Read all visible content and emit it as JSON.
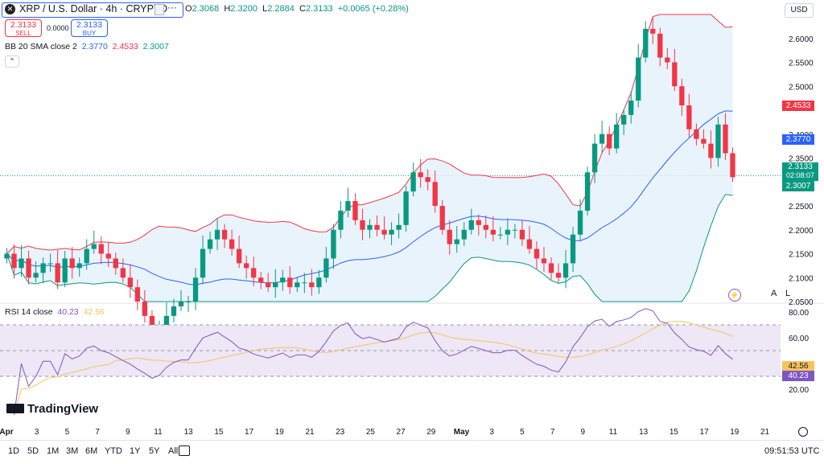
{
  "header": {
    "symbol": "XRP / U.S. Dollar · 4h · CRYPTO",
    "more_icon": "···",
    "ohlc": {
      "o_label": "O",
      "o": "2.3068",
      "h_label": "H",
      "h": "2.3200",
      "l_label": "L",
      "l": "2.2884",
      "c_label": "C",
      "c": "2.3133",
      "change": "+0.0065 (+0.28%)"
    },
    "sell_price": "2.3133",
    "sell_label": "SELL",
    "spread": "0.0000",
    "buy_price": "2.3133",
    "buy_label": "BUY",
    "currency": "USD"
  },
  "indicators": {
    "bb_label": "BB 20 SMA close 2",
    "bb_basis": "2.3770",
    "bb_upper": "2.4533",
    "bb_lower": "2.3007",
    "rsi_label": "RSI 14 close",
    "rsi_value": "40.23",
    "rsi_ma": "42.56"
  },
  "price_tags": {
    "upper": "2.4533",
    "basis": "2.3770",
    "last": "2.3133",
    "countdown": "02:08:07",
    "lower": "2.3007",
    "rsi_ma": "42.56",
    "rsi": "40.23"
  },
  "colors": {
    "up": "#089981",
    "down": "#f23645",
    "bb_upper": "#f23645",
    "bb_basis": "#2962ff",
    "bb_lower": "#089981",
    "bb_fill": "#e3f0fb",
    "rsi": "#7e57c2",
    "rsi_ma": "#f7c35c",
    "rsi_band": "#ede7f6"
  },
  "chart_data": {
    "type": "candlestick",
    "symbol": "XRP / U.S. Dollar",
    "interval": "4h",
    "price_axis": {
      "ticks": [
        2.05,
        2.1,
        2.15,
        2.2,
        2.25,
        2.3,
        2.35,
        2.4,
        2.45,
        2.5,
        2.55,
        2.6
      ],
      "labels": [
        "2.0500",
        "2.1000",
        "2.1500",
        "2.2000",
        "2.2500",
        "",
        "2.3500",
        "2.4000",
        "",
        "2.5000",
        "2.5500",
        "2.6000"
      ],
      "range": [
        2.05,
        2.65
      ]
    },
    "rsi_axis": {
      "ticks": [
        20,
        40,
        60,
        80
      ],
      "labels": [
        "20.00",
        "",
        "60.00",
        "80.00"
      ],
      "range": [
        10,
        85
      ],
      "bands": [
        30,
        70
      ]
    },
    "date_labels": [
      "Apr",
      "3",
      "5",
      "7",
      "9",
      "11",
      "13",
      "15",
      "17",
      "19",
      "21",
      "23",
      "25",
      "27",
      "29",
      "May",
      "3",
      "5",
      "7",
      "9",
      "11",
      "13",
      "15",
      "17",
      "19",
      "21"
    ],
    "closes": [
      2.15,
      2.12,
      2.14,
      2.1,
      2.11,
      2.13,
      2.13,
      2.09,
      2.14,
      2.12,
      2.13,
      2.16,
      2.17,
      2.15,
      2.14,
      2.12,
      2.1,
      2.08,
      2.05,
      2.02,
      1.98,
      1.99,
      2.02,
      2.04,
      2.05,
      2.05,
      2.1,
      2.16,
      2.18,
      2.2,
      2.18,
      2.16,
      2.13,
      2.12,
      2.1,
      2.09,
      2.08,
      2.09,
      2.1,
      2.08,
      2.09,
      2.09,
      2.08,
      2.1,
      2.14,
      2.2,
      2.24,
      2.26,
      2.22,
      2.2,
      2.21,
      2.2,
      2.19,
      2.2,
      2.21,
      2.28,
      2.32,
      2.31,
      2.3,
      2.25,
      2.2,
      2.17,
      2.18,
      2.2,
      2.22,
      2.21,
      2.2,
      2.19,
      2.19,
      2.2,
      2.2,
      2.18,
      2.16,
      2.14,
      2.13,
      2.11,
      2.1,
      2.13,
      2.19,
      2.24,
      2.32,
      2.38,
      2.4,
      2.37,
      2.42,
      2.44,
      2.47,
      2.56,
      2.62,
      2.61,
      2.56,
      2.55,
      2.5,
      2.46,
      2.41,
      2.39,
      2.38,
      2.35,
      2.42,
      2.36,
      2.31
    ]
  },
  "footer": {
    "logo": "TradingView",
    "timeframes": [
      "1D",
      "5D",
      "1M",
      "3M",
      "6M",
      "YTD",
      "1Y",
      "5Y",
      "All"
    ],
    "clock": "09:51:53 UTC",
    "scale_a": "A",
    "scale_l": "L"
  }
}
